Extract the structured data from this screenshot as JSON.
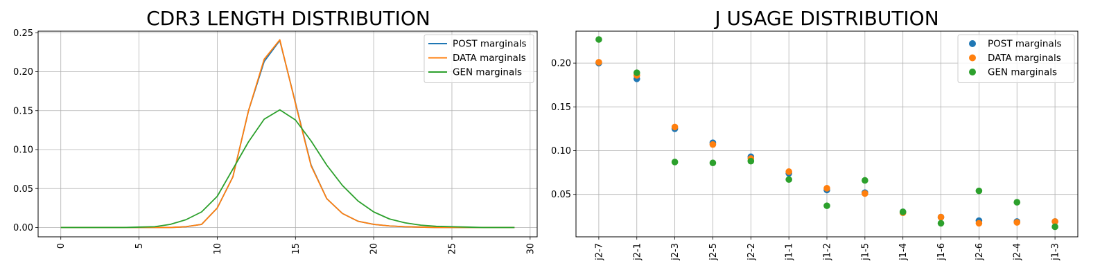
{
  "chart_data": [
    {
      "type": "line",
      "title": "CDR3 LENGTH DISTRIBUTION",
      "xlabel": "",
      "ylabel": "",
      "xlim": [
        -1.45,
        30.45
      ],
      "ylim": [
        -0.012,
        0.252
      ],
      "xticks": [
        0,
        5,
        10,
        15,
        20,
        25,
        30
      ],
      "yticks": [
        0.0,
        0.05,
        0.1,
        0.15,
        0.2,
        0.25
      ],
      "ytick_labels": [
        "0.00",
        "0.05",
        "0.10",
        "0.15",
        "0.20",
        "0.25"
      ],
      "grid": true,
      "legend_position": "upper-right",
      "x": [
        0,
        1,
        2,
        3,
        4,
        5,
        6,
        7,
        8,
        9,
        10,
        11,
        12,
        13,
        14,
        15,
        16,
        17,
        18,
        19,
        20,
        21,
        22,
        23,
        24,
        25,
        26,
        27,
        28,
        29
      ],
      "series": [
        {
          "name": "POST marginals",
          "color": "#1f77b4",
          "values": [
            0,
            0,
            0,
            0,
            0,
            0,
            0,
            0,
            0.001,
            0.004,
            0.025,
            0.065,
            0.15,
            0.213,
            0.24,
            0.16,
            0.08,
            0.037,
            0.018,
            0.008,
            0.004,
            0.002,
            0.001,
            0.0005,
            0,
            0,
            0,
            0,
            0,
            0
          ]
        },
        {
          "name": "DATA marginals",
          "color": "#ff7f0e",
          "values": [
            0,
            0,
            0,
            0,
            0,
            0,
            0,
            0,
            0.001,
            0.004,
            0.025,
            0.065,
            0.15,
            0.216,
            0.241,
            0.159,
            0.079,
            0.037,
            0.018,
            0.008,
            0.004,
            0.002,
            0.001,
            0.0005,
            0,
            0,
            0,
            0,
            0,
            0
          ]
        },
        {
          "name": "GEN marginals",
          "color": "#2ca02c",
          "values": [
            0,
            0,
            0,
            0,
            0,
            0.0005,
            0.001,
            0.004,
            0.01,
            0.02,
            0.04,
            0.075,
            0.11,
            0.139,
            0.151,
            0.138,
            0.111,
            0.08,
            0.054,
            0.034,
            0.02,
            0.011,
            0.006,
            0.003,
            0.0015,
            0.001,
            0.0005,
            0,
            0,
            0
          ]
        }
      ]
    },
    {
      "type": "scatter",
      "title": "J USAGE DISTRIBUTION",
      "xlabel": "",
      "ylabel": "",
      "ylim": [
        0.0015,
        0.2365
      ],
      "yticks": [
        0.05,
        0.1,
        0.15,
        0.2
      ],
      "ytick_labels": [
        "0.05",
        "0.10",
        "0.15",
        "0.20"
      ],
      "grid": true,
      "legend_position": "upper-right",
      "categories": [
        "j2-7",
        "j2-1",
        "j2-3",
        "j2-5",
        "j2-2",
        "j1-1",
        "j1-2",
        "j1-5",
        "j1-4",
        "j1-6",
        "j2-6",
        "j2-4",
        "j1-3"
      ],
      "series": [
        {
          "name": "POST marginals",
          "color": "#1f77b4",
          "values": [
            0.2,
            0.182,
            0.125,
            0.109,
            0.093,
            0.074,
            0.055,
            0.052,
            0.03,
            0.024,
            0.02,
            0.019,
            0.019
          ]
        },
        {
          "name": "DATA marginals",
          "color": "#ff7f0e",
          "values": [
            0.201,
            0.186,
            0.127,
            0.107,
            0.091,
            0.076,
            0.057,
            0.051,
            0.029,
            0.024,
            0.017,
            0.018,
            0.019
          ]
        },
        {
          "name": "GEN marginals",
          "color": "#2ca02c",
          "values": [
            0.227,
            0.189,
            0.087,
            0.086,
            0.088,
            0.067,
            0.037,
            0.066,
            0.03,
            0.017,
            0.054,
            0.041,
            0.013
          ]
        }
      ]
    }
  ]
}
